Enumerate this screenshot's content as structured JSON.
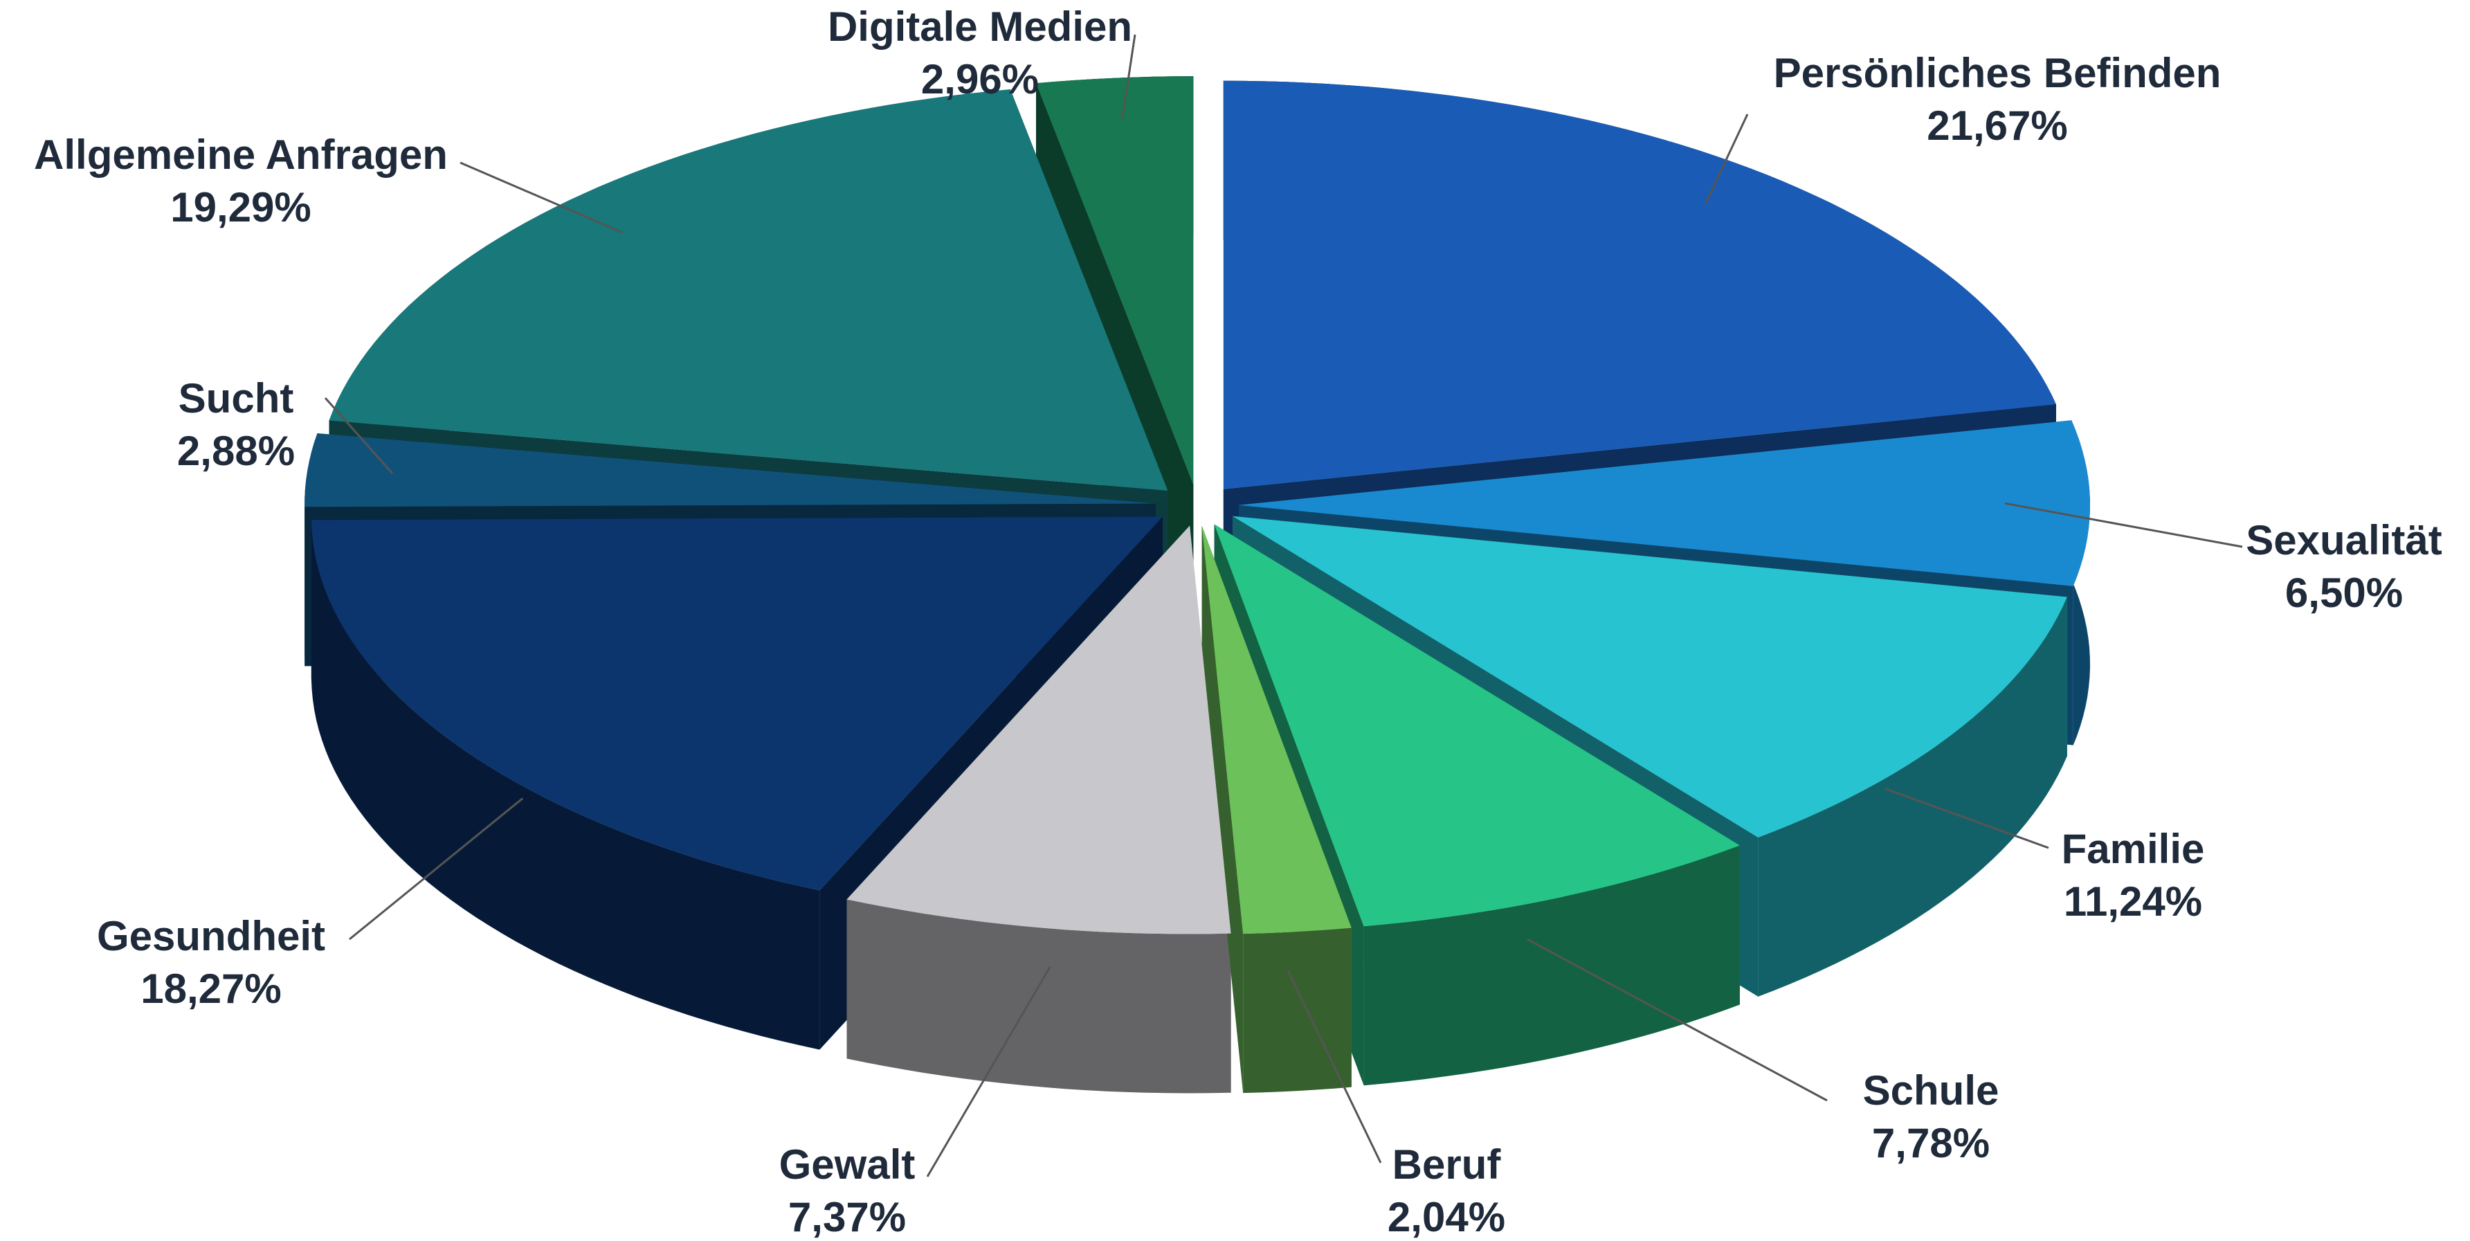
{
  "chart_data": {
    "type": "pie3d",
    "categories": [
      "Persönliches Befinden",
      "Sexualität",
      "Familie",
      "Schule",
      "Beruf",
      "Gewalt",
      "Gesundheit",
      "Sucht",
      "Allgemeine Anfragen",
      "Digitale Medien"
    ],
    "values": [
      21.67,
      6.5,
      11.24,
      7.78,
      2.04,
      7.37,
      18.27,
      2.88,
      19.29,
      2.96
    ],
    "value_labels": [
      "21,67%",
      "6,50%",
      "11,24%",
      "7,78%",
      "2,04%",
      "7,37%",
      "18,27%",
      "2,88%",
      "19,29%",
      "2,96%"
    ],
    "colors": [
      "#1a5bb5",
      "#1a8ad0",
      "#27c3d0",
      "#27c488",
      "#6cc15a",
      "#c8c8cc",
      "#0c356e",
      "#10517a",
      "#18787a",
      "#177852"
    ]
  }
}
